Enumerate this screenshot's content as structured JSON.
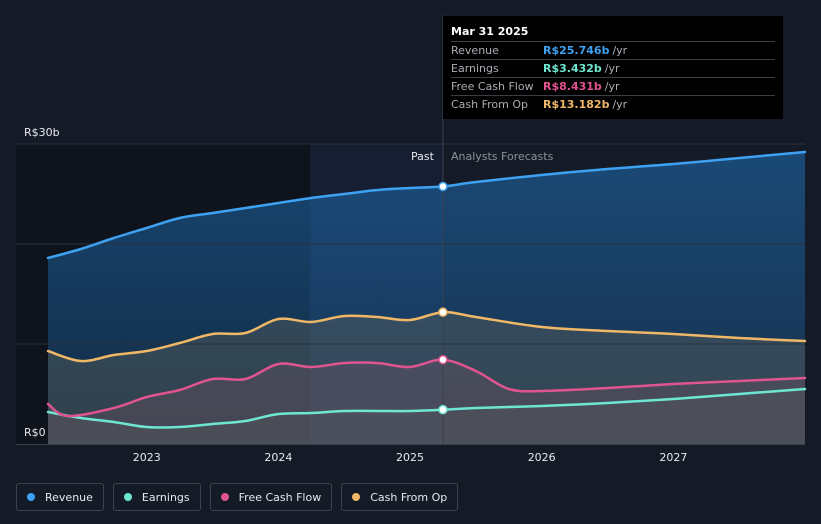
{
  "tooltip": {
    "date": "Mar 31 2025",
    "rows": [
      {
        "label": "Revenue",
        "value": "R$25.746b",
        "unit": "/yr",
        "color": "#3ea1f2"
      },
      {
        "label": "Earnings",
        "value": "R$3.432b",
        "unit": "/yr",
        "color": "#6ee7d2"
      },
      {
        "label": "Free Cash Flow",
        "value": "R$8.431b",
        "unit": "/yr",
        "color": "#e0548f"
      },
      {
        "label": "Cash From Op",
        "value": "R$13.182b",
        "unit": "/yr",
        "color": "#f0b866"
      }
    ]
  },
  "legend": [
    {
      "label": "Revenue",
      "color": "#3ea1f2"
    },
    {
      "label": "Earnings",
      "color": "#6ee7d2"
    },
    {
      "label": "Free Cash Flow",
      "color": "#e0548f"
    },
    {
      "label": "Cash From Op",
      "color": "#f0b866"
    }
  ],
  "chart_data": {
    "type": "line",
    "title": "",
    "xlabel": "",
    "ylabel": "",
    "ylim": [
      0,
      30
    ],
    "xlim": [
      2022.25,
      2028.0
    ],
    "y_ticks": [
      {
        "value": 0,
        "label": "R$0"
      },
      {
        "value": 30,
        "label": "R$30b"
      }
    ],
    "x_ticks": [
      {
        "value": 2023,
        "label": "2023"
      },
      {
        "value": 2024,
        "label": "2024"
      },
      {
        "value": 2025,
        "label": "2025"
      },
      {
        "value": 2026,
        "label": "2026"
      },
      {
        "value": 2027,
        "label": "2027"
      }
    ],
    "past_label": "Past",
    "forecast_label": "Analysts Forecasts",
    "split_x": 2025.25,
    "series": [
      {
        "name": "Revenue",
        "color": "#3ea1f2",
        "points": [
          [
            2022.25,
            18.6
          ],
          [
            2022.5,
            19.5
          ],
          [
            2022.75,
            20.6
          ],
          [
            2023.0,
            21.6
          ],
          [
            2023.25,
            22.6
          ],
          [
            2023.5,
            23.1
          ],
          [
            2023.75,
            23.6
          ],
          [
            2024.0,
            24.1
          ],
          [
            2024.25,
            24.6
          ],
          [
            2024.5,
            25.0
          ],
          [
            2024.75,
            25.4
          ],
          [
            2025.0,
            25.6
          ],
          [
            2025.25,
            25.746
          ],
          [
            2025.5,
            26.2
          ],
          [
            2026.0,
            26.9
          ],
          [
            2026.5,
            27.5
          ],
          [
            2027.0,
            28.0
          ],
          [
            2027.5,
            28.6
          ],
          [
            2028.0,
            29.2
          ]
        ]
      },
      {
        "name": "Earnings",
        "color": "#6ee7d2",
        "points": [
          [
            2022.25,
            3.2
          ],
          [
            2022.5,
            2.6
          ],
          [
            2022.75,
            2.2
          ],
          [
            2023.0,
            1.7
          ],
          [
            2023.25,
            1.7
          ],
          [
            2023.5,
            2.0
          ],
          [
            2023.75,
            2.3
          ],
          [
            2024.0,
            3.0
          ],
          [
            2024.25,
            3.1
          ],
          [
            2024.5,
            3.3
          ],
          [
            2024.75,
            3.3
          ],
          [
            2025.0,
            3.3
          ],
          [
            2025.25,
            3.432
          ],
          [
            2025.5,
            3.6
          ],
          [
            2026.0,
            3.8
          ],
          [
            2026.5,
            4.1
          ],
          [
            2027.0,
            4.5
          ],
          [
            2027.5,
            5.0
          ],
          [
            2028.0,
            5.5
          ]
        ]
      },
      {
        "name": "Free Cash Flow",
        "color": "#e0548f",
        "points": [
          [
            2022.25,
            4.0
          ],
          [
            2022.4,
            2.8
          ],
          [
            2022.75,
            3.6
          ],
          [
            2023.0,
            4.7
          ],
          [
            2023.25,
            5.4
          ],
          [
            2023.5,
            6.5
          ],
          [
            2023.75,
            6.5
          ],
          [
            2024.0,
            8.0
          ],
          [
            2024.25,
            7.7
          ],
          [
            2024.5,
            8.1
          ],
          [
            2024.75,
            8.1
          ],
          [
            2025.0,
            7.7
          ],
          [
            2025.25,
            8.431
          ],
          [
            2025.5,
            7.3
          ],
          [
            2025.75,
            5.5
          ],
          [
            2026.0,
            5.3
          ],
          [
            2026.5,
            5.6
          ],
          [
            2027.0,
            6.0
          ],
          [
            2027.5,
            6.3
          ],
          [
            2028.0,
            6.6
          ]
        ]
      },
      {
        "name": "Cash From Op",
        "color": "#f0b866",
        "points": [
          [
            2022.25,
            9.3
          ],
          [
            2022.5,
            8.3
          ],
          [
            2022.75,
            8.9
          ],
          [
            2023.0,
            9.3
          ],
          [
            2023.25,
            10.1
          ],
          [
            2023.5,
            11.0
          ],
          [
            2023.75,
            11.1
          ],
          [
            2024.0,
            12.5
          ],
          [
            2024.25,
            12.2
          ],
          [
            2024.5,
            12.8
          ],
          [
            2024.75,
            12.7
          ],
          [
            2025.0,
            12.4
          ],
          [
            2025.25,
            13.182
          ],
          [
            2025.5,
            12.7
          ],
          [
            2026.0,
            11.7
          ],
          [
            2026.5,
            11.3
          ],
          [
            2027.0,
            11.0
          ],
          [
            2027.5,
            10.6
          ],
          [
            2028.0,
            10.3
          ]
        ]
      }
    ],
    "highlighted_point_x": 2025.25
  }
}
